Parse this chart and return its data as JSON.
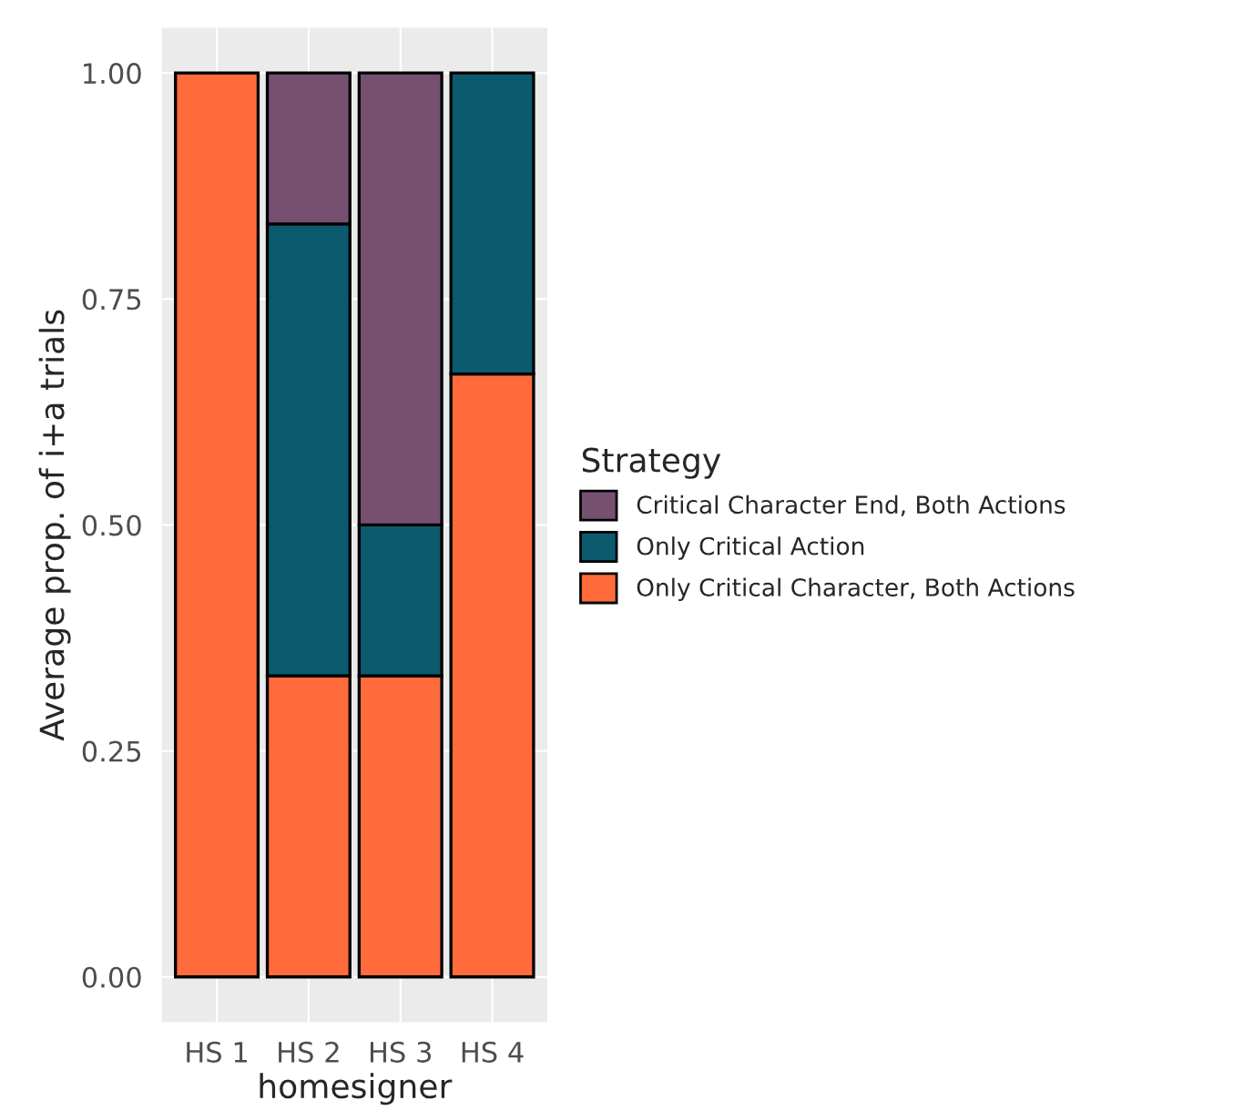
{
  "chart_data": {
    "type": "bar",
    "stacked": true,
    "xlabel": "homesigner",
    "ylabel": "Average prop. of i+a trials",
    "legend_title": "Strategy",
    "categories": [
      "HS 1",
      "HS 2",
      "HS 3",
      "HS 4"
    ],
    "series": [
      {
        "name": "Only Critical Character, Both Actions",
        "color": "#ff6b3b",
        "values": [
          1.0,
          0.333,
          0.333,
          0.667
        ]
      },
      {
        "name": "Only Critical Action",
        "color": "#0b5a6e",
        "values": [
          0,
          0.5,
          0.167,
          0.333
        ]
      },
      {
        "name": "Critical Character End, Both Actions",
        "color": "#765071",
        "values": [
          0,
          0.167,
          0.5,
          0
        ]
      }
    ],
    "ylim": [
      -0.05,
      1.05
    ],
    "yticks": [
      {
        "value": 0,
        "label": "0.00"
      },
      {
        "value": 0.25,
        "label": "0.25"
      },
      {
        "value": 0.5,
        "label": "0.50"
      },
      {
        "value": 0.75,
        "label": "0.75"
      },
      {
        "value": 1.0,
        "label": "1.00"
      }
    ],
    "grid": true,
    "legend": "right"
  }
}
